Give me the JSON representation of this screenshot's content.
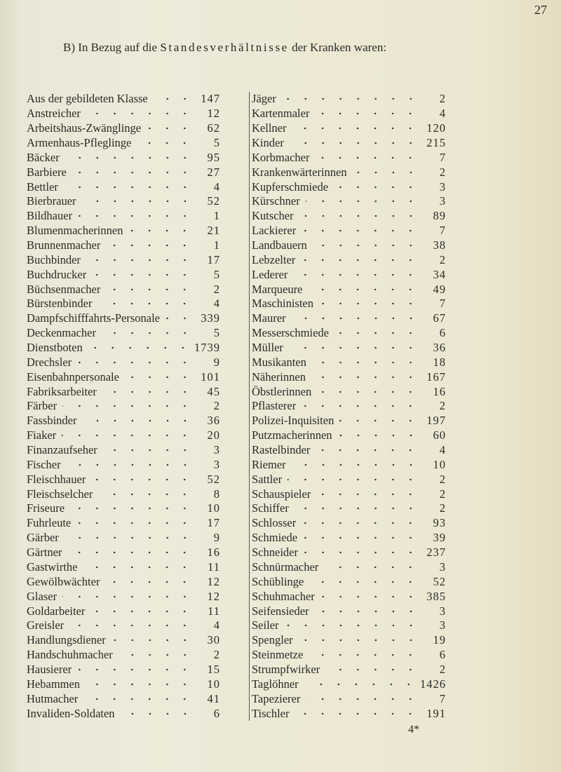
{
  "page_number": "27",
  "heading": {
    "prefix": "B) In Bezug auf die ",
    "spaced": "Standesverhältnisse",
    "suffix": " der Kranken waren:"
  },
  "left_column": [
    {
      "name": "Aus der gebildeten Klasse",
      "value": "147"
    },
    {
      "name": "Anstreicher",
      "value": "12"
    },
    {
      "name": "Arbeitshaus-Zwänglinge",
      "value": "62"
    },
    {
      "name": "Armenhaus-Pfleglinge",
      "value": "5"
    },
    {
      "name": "Bäcker",
      "value": "95"
    },
    {
      "name": "Barbiere",
      "value": "27"
    },
    {
      "name": "Bettler",
      "value": "4"
    },
    {
      "name": "Bierbrauer",
      "value": "52"
    },
    {
      "name": "Bildhauer",
      "value": "1"
    },
    {
      "name": "Blumenmacherinnen",
      "value": "21"
    },
    {
      "name": "Brunnenmacher",
      "value": "1"
    },
    {
      "name": "Buchbinder",
      "value": "17"
    },
    {
      "name": "Buchdrucker",
      "value": "5"
    },
    {
      "name": "Büchsenmacher",
      "value": "2"
    },
    {
      "name": "Bürstenbinder",
      "value": "4"
    },
    {
      "name": "Dampfschifffahrts-Personale",
      "value": "339"
    },
    {
      "name": "Deckenmacher",
      "value": "5"
    },
    {
      "name": "Dienstboten",
      "value": "1739"
    },
    {
      "name": "Drechsler",
      "value": "9"
    },
    {
      "name": "Eisenbahnpersonale",
      "value": "101"
    },
    {
      "name": "Fabriksarbeiter",
      "value": "45"
    },
    {
      "name": "Färber",
      "value": "2"
    },
    {
      "name": "Fassbinder",
      "value": "36"
    },
    {
      "name": "Fiaker",
      "value": "20"
    },
    {
      "name": "Finanzaufseher",
      "value": "3"
    },
    {
      "name": "Fischer",
      "value": "3"
    },
    {
      "name": "Fleischhauer",
      "value": "52"
    },
    {
      "name": "Fleischselcher",
      "value": "8"
    },
    {
      "name": "Friseure",
      "value": "10"
    },
    {
      "name": "Fuhrleute",
      "value": "17"
    },
    {
      "name": "Gärber",
      "value": "9"
    },
    {
      "name": "Gärtner",
      "value": "16"
    },
    {
      "name": "Gastwirthe",
      "value": "11"
    },
    {
      "name": "Gewölbwächter",
      "value": "12"
    },
    {
      "name": "Glaser",
      "value": "12"
    },
    {
      "name": "Goldarbeiter",
      "value": "11"
    },
    {
      "name": "Greisler",
      "value": "4"
    },
    {
      "name": "Handlungsdiener",
      "value": "30"
    },
    {
      "name": "Handschuhmacher",
      "value": "2"
    },
    {
      "name": "Hausierer",
      "value": "15"
    },
    {
      "name": "Hebammen",
      "value": "10"
    },
    {
      "name": "Hutmacher",
      "value": "41"
    },
    {
      "name": "Invaliden-Soldaten",
      "value": "6"
    }
  ],
  "right_column": [
    {
      "name": "Jäger",
      "value": "2"
    },
    {
      "name": "Kartenmaler",
      "value": "4"
    },
    {
      "name": "Kellner",
      "value": "120"
    },
    {
      "name": "Kinder",
      "value": "215"
    },
    {
      "name": "Korbmacher",
      "value": "7"
    },
    {
      "name": "Krankenwärterinnen",
      "value": "2"
    },
    {
      "name": "Kupferschmiede",
      "value": "3"
    },
    {
      "name": "Kürschner",
      "value": "3"
    },
    {
      "name": "Kutscher",
      "value": "89"
    },
    {
      "name": "Lackierer",
      "value": "7"
    },
    {
      "name": "Landbauern",
      "value": "38"
    },
    {
      "name": "Lebzelter",
      "value": "2"
    },
    {
      "name": "Lederer",
      "value": "34"
    },
    {
      "name": "Marqueure",
      "value": "49"
    },
    {
      "name": "Maschinisten",
      "value": "7"
    },
    {
      "name": "Maurer",
      "value": "67"
    },
    {
      "name": "Messerschmiede",
      "value": "6"
    },
    {
      "name": "Müller",
      "value": "36"
    },
    {
      "name": "Musikanten",
      "value": "18"
    },
    {
      "name": "Näherinnen",
      "value": "167"
    },
    {
      "name": "Öbstlerinnen",
      "value": "16"
    },
    {
      "name": "Pflasterer",
      "value": "2"
    },
    {
      "name": "Polizei-Inquisiten",
      "value": "197"
    },
    {
      "name": "Putzmacherinnen",
      "value": "60"
    },
    {
      "name": "Rastelbinder",
      "value": "4"
    },
    {
      "name": "Riemer",
      "value": "10"
    },
    {
      "name": "Sattler",
      "value": "2"
    },
    {
      "name": "Schauspieler",
      "value": "2"
    },
    {
      "name": "Schiffer",
      "value": "2"
    },
    {
      "name": "Schlosser",
      "value": "93"
    },
    {
      "name": "Schmiede",
      "value": "39"
    },
    {
      "name": "Schneider",
      "value": "237"
    },
    {
      "name": "Schnürmacher",
      "value": "3"
    },
    {
      "name": "Schüblinge",
      "value": "52"
    },
    {
      "name": "Schuhmacher",
      "value": "385"
    },
    {
      "name": "Seifensieder",
      "value": "3"
    },
    {
      "name": "Seiler",
      "value": "3"
    },
    {
      "name": "Spengler",
      "value": "19"
    },
    {
      "name": "Steinmetze",
      "value": "6"
    },
    {
      "name": "Strumpfwirker",
      "value": "2"
    },
    {
      "name": "Taglöhner",
      "value": "1426"
    },
    {
      "name": "Tapezierer",
      "value": "7"
    },
    {
      "name": "Tischler",
      "value": "191"
    }
  ],
  "signature_mark": "4*"
}
